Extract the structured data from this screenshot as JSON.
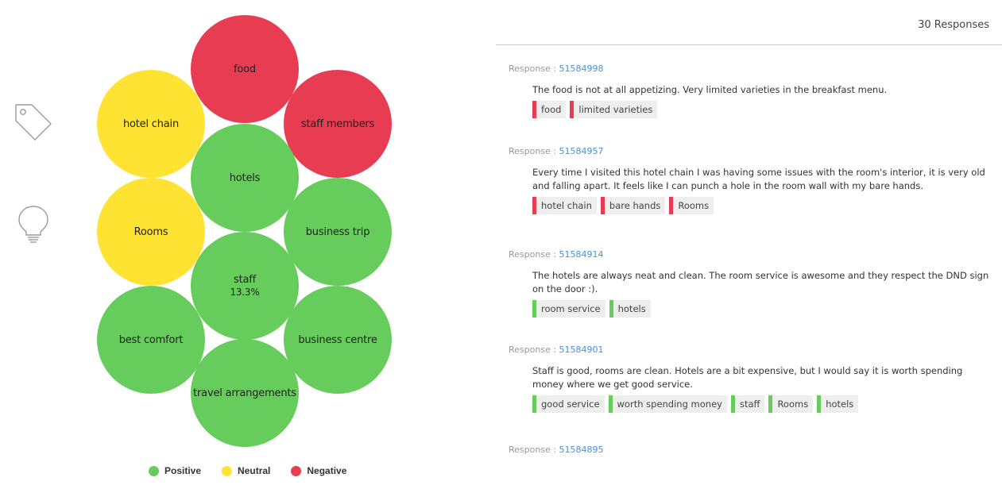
{
  "colors": {
    "positive": "#66cc5c",
    "neutral": "#ffe333",
    "negative": "#e73c52"
  },
  "toolbar": {
    "icons": [
      "tag-icon",
      "lightbulb-icon"
    ]
  },
  "bubbles": [
    {
      "label": "food",
      "sentiment": "negative",
      "percent": ""
    },
    {
      "label": "hotel chain",
      "sentiment": "neutral",
      "percent": ""
    },
    {
      "label": "staff members",
      "sentiment": "negative",
      "percent": ""
    },
    {
      "label": "hotels",
      "sentiment": "positive",
      "percent": ""
    },
    {
      "label": "Rooms",
      "sentiment": "neutral",
      "percent": ""
    },
    {
      "label": "business trip",
      "sentiment": "positive",
      "percent": ""
    },
    {
      "label": "staff",
      "sentiment": "positive",
      "percent": "13.3%"
    },
    {
      "label": "best comfort",
      "sentiment": "positive",
      "percent": ""
    },
    {
      "label": "business centre",
      "sentiment": "positive",
      "percent": ""
    },
    {
      "label": "travel arrangements",
      "sentiment": "positive",
      "percent": ""
    }
  ],
  "legend": [
    {
      "label": "Positive",
      "sentiment": "positive"
    },
    {
      "label": "Neutral",
      "sentiment": "neutral"
    },
    {
      "label": "Negative",
      "sentiment": "negative"
    }
  ],
  "panel": {
    "responses_count": "30 Responses",
    "response_prefix": "Response : "
  },
  "responses": [
    {
      "id": "51584998",
      "text": "The food is not at all appetizing. Very limited varieties in the breakfast menu.",
      "tags": [
        {
          "label": "food",
          "sentiment": "negative"
        },
        {
          "label": "limited varieties",
          "sentiment": "negative"
        }
      ]
    },
    {
      "id": "51584957",
      "text": "Every time I visited this hotel chain I was having some issues with the room's interior, it is very old and falling apart. It feels like I can punch a hole in the room wall with my bare hands.",
      "tags": [
        {
          "label": "hotel chain",
          "sentiment": "negative"
        },
        {
          "label": "bare hands",
          "sentiment": "negative"
        },
        {
          "label": "Rooms",
          "sentiment": "negative"
        }
      ]
    },
    {
      "id": "51584914",
      "text": "The hotels are always neat and clean. The room service is awesome and they respect the DND sign on the door :).",
      "tags": [
        {
          "label": "room service",
          "sentiment": "positive"
        },
        {
          "label": "hotels",
          "sentiment": "positive"
        }
      ]
    },
    {
      "id": "51584901",
      "text": "Staff is good, rooms are clean. Hotels are a bit expensive, but I would say it is worth spending money where we get good service.",
      "tags": [
        {
          "label": "good service",
          "sentiment": "positive"
        },
        {
          "label": "worth spending money",
          "sentiment": "positive"
        },
        {
          "label": "staff",
          "sentiment": "positive"
        },
        {
          "label": "Rooms",
          "sentiment": "positive"
        },
        {
          "label": "hotels",
          "sentiment": "positive"
        }
      ]
    },
    {
      "id": "51584895",
      "text": "",
      "tags": []
    }
  ]
}
